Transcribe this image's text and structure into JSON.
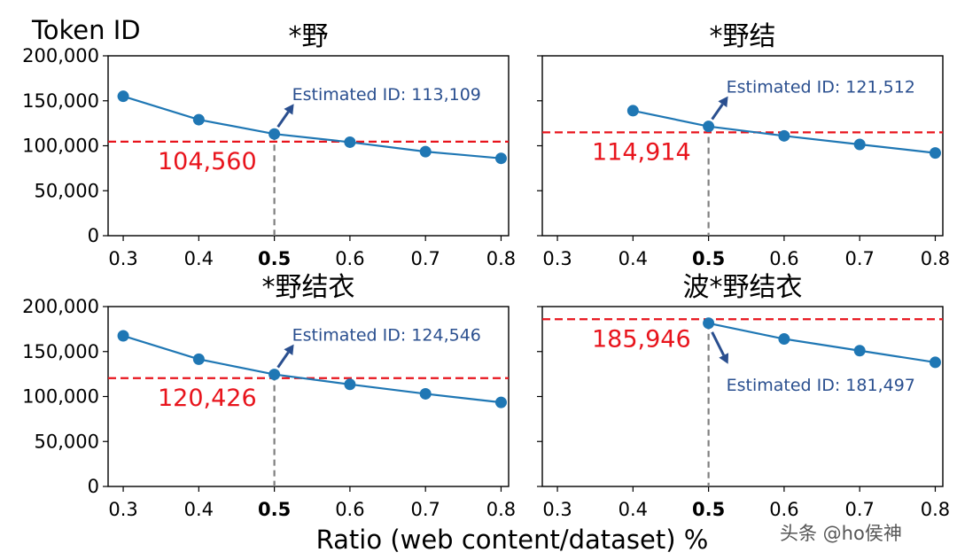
{
  "figure": {
    "ylabel": "Token ID",
    "xlabel": "Ratio (web content/dataset) %",
    "watermark": "头条 @ho侯神"
  },
  "colors": {
    "line": "#1f77b4",
    "reference": "#e8141c",
    "marker_line": "#808080",
    "estimate_text": "#2a4f8f"
  },
  "chart_data": [
    {
      "type": "line",
      "title": "*野",
      "x": [
        0.3,
        0.4,
        0.5,
        0.6,
        0.7,
        0.8
      ],
      "x_ticks": [
        "0.3",
        "0.4",
        "0.5",
        "0.6",
        "0.7",
        "0.8"
      ],
      "bold_tick": "0.5",
      "y": [
        155000,
        129000,
        113109,
        104000,
        93500,
        86000
      ],
      "y_ticks": [
        "0",
        "50,000",
        "100,000",
        "150,000",
        "200,000"
      ],
      "ylim": [
        0,
        200000
      ],
      "reference_value": 104560,
      "reference_label": "104,560",
      "estimate": {
        "x": 0.5,
        "y": 113109,
        "label": "Estimated ID: 113,109",
        "direction": "up"
      }
    },
    {
      "type": "line",
      "title": "*野结",
      "x": [
        0.4,
        0.5,
        0.6,
        0.7,
        0.8
      ],
      "x_ticks": [
        "0.3",
        "0.4",
        "0.5",
        "0.6",
        "0.7",
        "0.8"
      ],
      "bold_tick": "0.5",
      "y": [
        139000,
        121512,
        111000,
        101500,
        92000
      ],
      "ylim": [
        0,
        200000
      ],
      "reference_value": 114914,
      "reference_label": "114,914",
      "estimate": {
        "x": 0.5,
        "y": 121512,
        "label": "Estimated ID: 121,512",
        "direction": "up"
      }
    },
    {
      "type": "line",
      "title": "*野结衣",
      "x": [
        0.3,
        0.4,
        0.5,
        0.6,
        0.7,
        0.8
      ],
      "x_ticks": [
        "0.3",
        "0.4",
        "0.5",
        "0.6",
        "0.7",
        "0.8"
      ],
      "bold_tick": "0.5",
      "y": [
        167500,
        141500,
        124546,
        113500,
        103000,
        93500
      ],
      "y_ticks": [
        "0",
        "50,000",
        "100,000",
        "150,000",
        "200,000"
      ],
      "ylim": [
        0,
        200000
      ],
      "reference_value": 120426,
      "reference_label": "120,426",
      "estimate": {
        "x": 0.5,
        "y": 124546,
        "label": "Estimated ID: 124,546",
        "direction": "up"
      }
    },
    {
      "type": "line",
      "title": "波*野结衣",
      "x": [
        0.5,
        0.6,
        0.7,
        0.8
      ],
      "x_ticks": [
        "0.3",
        "0.4",
        "0.5",
        "0.6",
        "0.7",
        "0.8"
      ],
      "bold_tick": "0.5",
      "y": [
        181497,
        164000,
        151000,
        138000
      ],
      "ylim": [
        0,
        200000
      ],
      "reference_value": 185946,
      "reference_label": "185,946",
      "estimate": {
        "x": 0.5,
        "y": 181497,
        "label": "Estimated ID: 181,497",
        "direction": "down"
      }
    }
  ]
}
